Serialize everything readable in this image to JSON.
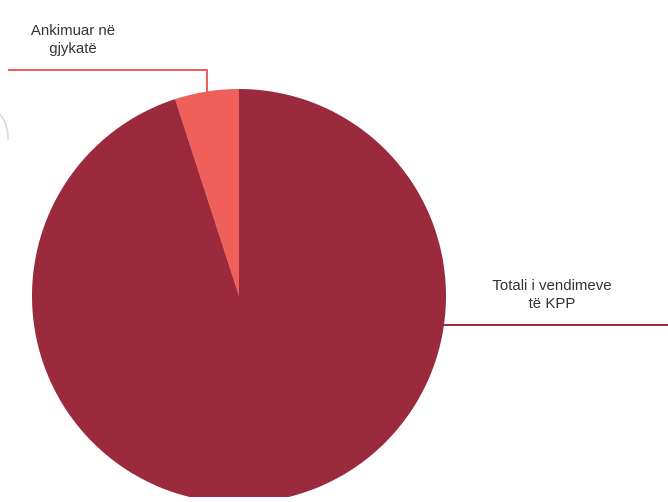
{
  "chart_data": {
    "type": "pie",
    "title": "",
    "slices": [
      {
        "label_lines": [
          "Totali i vendimeve",
          "të KPP"
        ],
        "value": 95,
        "color": "#9a2a3c"
      },
      {
        "label_lines": [
          "Ankimuar në",
          "gjykatë"
        ],
        "value": 5,
        "color": "#f0605a"
      }
    ],
    "legend": "none",
    "labels": "callout"
  }
}
